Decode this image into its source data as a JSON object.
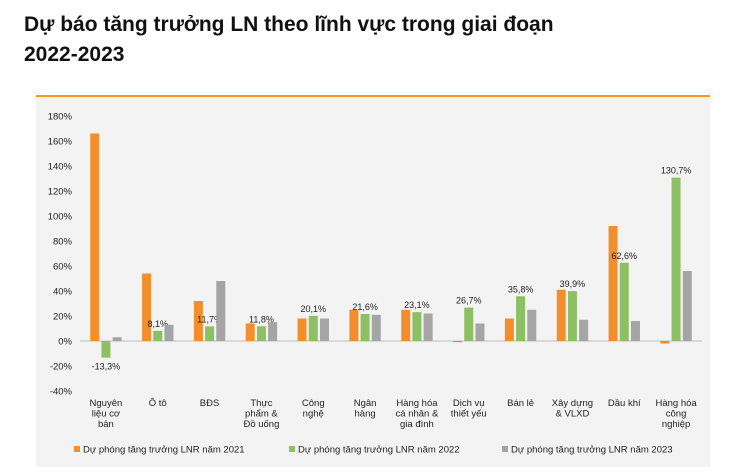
{
  "title_line1": "Dự báo tăng trưởng LN theo lĩnh vực trong giai đoạn",
  "title_line2": "2022-2023",
  "chart_data": {
    "type": "bar",
    "title": "Dự báo tăng trưởng LN theo lĩnh vực trong giai đoạn 2022-2023",
    "xlabel": "",
    "ylabel": "",
    "ylim": [
      -40,
      180
    ],
    "yticks": [
      "180%",
      "160%",
      "140%",
      "120%",
      "100%",
      "80%",
      "60%",
      "40%",
      "20%",
      "0%",
      "-20%",
      "-40%"
    ],
    "ytick_values": [
      180,
      160,
      140,
      120,
      100,
      80,
      60,
      40,
      20,
      0,
      -20,
      -40
    ],
    "grid": false,
    "legend_position": "bottom",
    "categories": [
      [
        "Nguyên",
        "liệu cơ",
        "bản"
      ],
      [
        "Ô tô"
      ],
      [
        "BĐS"
      ],
      [
        "Thực",
        "phẩm &",
        "Đồ uống"
      ],
      [
        "Công",
        "nghệ"
      ],
      [
        "Ngân",
        "hàng"
      ],
      [
        "Hàng hóa",
        "cá nhân &",
        "gia đình"
      ],
      [
        "Dịch vụ",
        "thiết yếu"
      ],
      [
        "Bán lẻ"
      ],
      [
        "Xây dựng",
        "& VLXD"
      ],
      [
        "Dầu khí"
      ],
      [
        "Hàng hóa",
        "công",
        "nghiệp"
      ]
    ],
    "series": [
      {
        "name": "Dự phóng tăng trưởng LNR năm 2021",
        "color": "#f28e2b",
        "values": [
          166,
          54,
          32,
          14,
          18,
          25,
          25,
          -1,
          18,
          41,
          92,
          -2
        ]
      },
      {
        "name": "Dự phóng tăng trưởng LNR năm 2022",
        "color": "#8cc063",
        "values": [
          -13.3,
          8.1,
          11.7,
          11.8,
          20.1,
          21.6,
          23.1,
          26.7,
          35.8,
          39.9,
          62.6,
          130.7
        ],
        "labels": [
          "-13,3%",
          "8,1%",
          "11,7%",
          "11,8%",
          "20,1%",
          "21,6%",
          "23,1%",
          "26,7%",
          "35,8%",
          "39,9%",
          "62,6%",
          "130,7%"
        ]
      },
      {
        "name": "Dự phóng tăng trưởng LNR năm 2023",
        "color": "#a5a5a5",
        "values": [
          3,
          13,
          48,
          15,
          18,
          21,
          22,
          14,
          25,
          17,
          16,
          56
        ]
      }
    ]
  }
}
